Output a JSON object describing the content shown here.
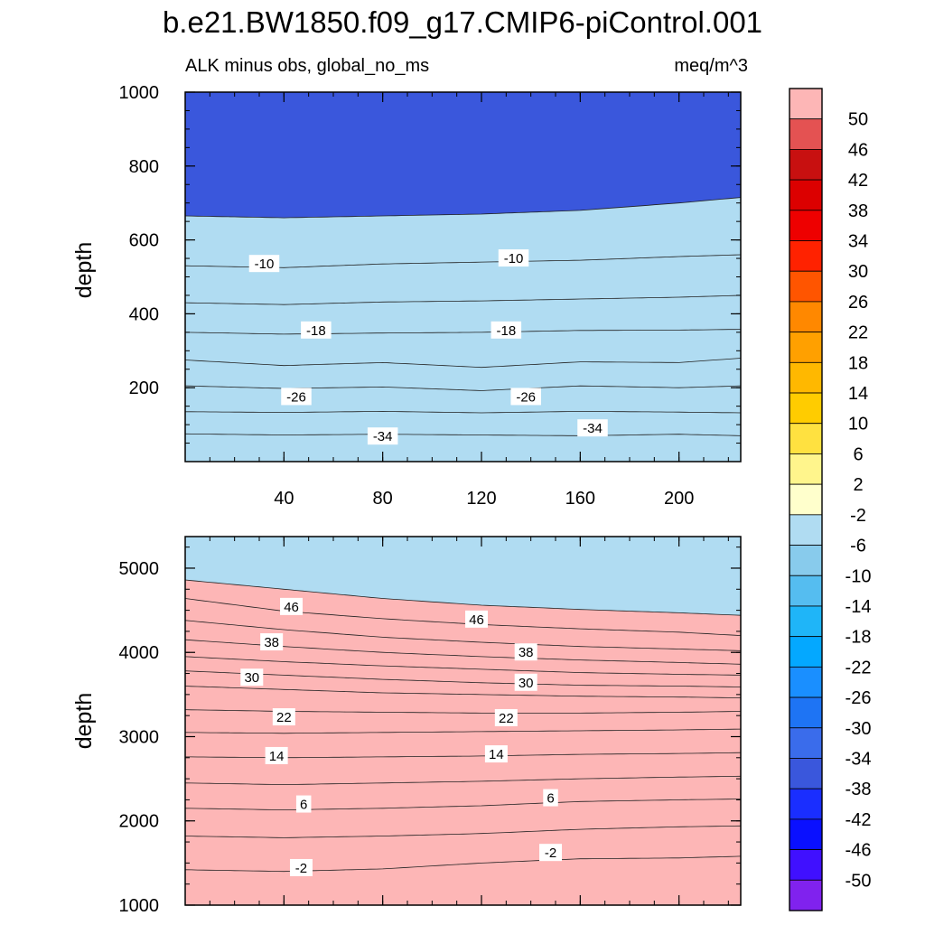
{
  "title": "b.e21.BW1850.f09_g17.CMIP6-piControl.001",
  "subtitle_left": "ALK minus obs, global_no_ms",
  "subtitle_right": "meq/m^3",
  "chart_data": [
    {
      "type": "contour",
      "panel": "upper",
      "xlabel": "",
      "ylabel": "depth",
      "xlim": [
        0,
        225
      ],
      "ylim": [
        1000,
        0
      ],
      "x_ticks": [
        40,
        80,
        120,
        160,
        200
      ],
      "y_ticks": [
        200,
        400,
        600,
        800,
        1000
      ],
      "contours": [
        {
          "level": -34,
          "points": [
            [
              0,
              75
            ],
            [
              40,
              72
            ],
            [
              80,
              74
            ],
            [
              120,
              72
            ],
            [
              160,
              70
            ],
            [
              200,
              74
            ],
            [
              225,
              70
            ]
          ]
        },
        {
          "level": -30,
          "points": [
            [
              0,
              135
            ],
            [
              40,
              133
            ],
            [
              80,
              136
            ],
            [
              120,
              132
            ],
            [
              160,
              136
            ],
            [
              200,
              134
            ],
            [
              225,
              132
            ]
          ]
        },
        {
          "level": -26,
          "points": [
            [
              0,
              205
            ],
            [
              40,
              198
            ],
            [
              80,
              202
            ],
            [
              120,
              192
            ],
            [
              160,
              205
            ],
            [
              200,
              200
            ],
            [
              225,
              205
            ]
          ]
        },
        {
          "level": -22,
          "points": [
            [
              0,
              275
            ],
            [
              40,
              260
            ],
            [
              80,
              268
            ],
            [
              120,
              255
            ],
            [
              160,
              270
            ],
            [
              200,
              268
            ],
            [
              225,
              280
            ]
          ]
        },
        {
          "level": -18,
          "points": [
            [
              0,
              350
            ],
            [
              40,
              345
            ],
            [
              80,
              348
            ],
            [
              120,
              350
            ],
            [
              160,
              355
            ],
            [
              200,
              356
            ],
            [
              225,
              358
            ]
          ]
        },
        {
          "level": -14,
          "points": [
            [
              0,
              430
            ],
            [
              40,
              425
            ],
            [
              80,
              432
            ],
            [
              120,
              435
            ],
            [
              160,
              440
            ],
            [
              200,
              445
            ],
            [
              225,
              450
            ]
          ]
        },
        {
          "level": -10,
          "points": [
            [
              0,
              530
            ],
            [
              40,
              525
            ],
            [
              80,
              535
            ],
            [
              120,
              540
            ],
            [
              160,
              545
            ],
            [
              200,
              555
            ],
            [
              225,
              560
            ]
          ]
        },
        {
          "level": -6,
          "points": [
            [
              0,
              665
            ],
            [
              40,
              660
            ],
            [
              80,
              665
            ],
            [
              120,
              670
            ],
            [
              160,
              680
            ],
            [
              200,
              700
            ],
            [
              225,
              715
            ]
          ]
        }
      ],
      "labels": [
        {
          "text": "-34",
          "x": 80,
          "y": 68
        },
        {
          "text": "-34",
          "x": 165,
          "y": 90
        },
        {
          "text": "-26",
          "x": 45,
          "y": 175
        },
        {
          "text": "-26",
          "x": 138,
          "y": 175
        },
        {
          "text": "-18",
          "x": 53,
          "y": 355
        },
        {
          "text": "-18",
          "x": 130,
          "y": 355
        },
        {
          "text": "-10",
          "x": 32,
          "y": 535
        },
        {
          "text": "-10",
          "x": 133,
          "y": 550
        }
      ]
    },
    {
      "type": "contour",
      "panel": "lower",
      "xlabel": "",
      "ylabel": "depth",
      "xlim": [
        0,
        225
      ],
      "ylim": [
        5375,
        1000
      ],
      "y_ticks": [
        1000,
        2000,
        3000,
        4000,
        5000
      ],
      "contours": [
        {
          "level": -2,
          "points": [
            [
              0,
              1420
            ],
            [
              40,
              1400
            ],
            [
              80,
              1430
            ],
            [
              120,
              1500
            ],
            [
              160,
              1550
            ],
            [
              200,
              1560
            ],
            [
              225,
              1580
            ]
          ]
        },
        {
          "level": 2,
          "points": [
            [
              0,
              1820
            ],
            [
              40,
              1800
            ],
            [
              80,
              1820
            ],
            [
              120,
              1850
            ],
            [
              160,
              1900
            ],
            [
              200,
              1930
            ],
            [
              225,
              1940
            ]
          ]
        },
        {
          "level": 6,
          "points": [
            [
              0,
              2150
            ],
            [
              40,
              2130
            ],
            [
              80,
              2150
            ],
            [
              120,
              2180
            ],
            [
              160,
              2230
            ],
            [
              200,
              2250
            ],
            [
              225,
              2260
            ]
          ]
        },
        {
          "level": 10,
          "points": [
            [
              0,
              2450
            ],
            [
              40,
              2430
            ],
            [
              80,
              2450
            ],
            [
              120,
              2470
            ],
            [
              160,
              2500
            ],
            [
              200,
              2520
            ],
            [
              225,
              2530
            ]
          ]
        },
        {
          "level": 14,
          "points": [
            [
              0,
              2760
            ],
            [
              40,
              2750
            ],
            [
              80,
              2760
            ],
            [
              120,
              2770
            ],
            [
              160,
              2790
            ],
            [
              200,
              2800
            ],
            [
              225,
              2810
            ]
          ]
        },
        {
          "level": 18,
          "points": [
            [
              0,
              3050
            ],
            [
              40,
              3040
            ],
            [
              80,
              3050
            ],
            [
              120,
              3060
            ],
            [
              160,
              3070
            ],
            [
              200,
              3080
            ],
            [
              225,
              3090
            ]
          ]
        },
        {
          "level": 22,
          "points": [
            [
              0,
              3320
            ],
            [
              40,
              3300
            ],
            [
              80,
              3290
            ],
            [
              120,
              3280
            ],
            [
              160,
              3280
            ],
            [
              200,
              3290
            ],
            [
              225,
              3300
            ]
          ]
        },
        {
          "level": 26,
          "points": [
            [
              0,
              3600
            ],
            [
              40,
              3560
            ],
            [
              80,
              3520
            ],
            [
              120,
              3500
            ],
            [
              160,
              3480
            ],
            [
              200,
              3470
            ],
            [
              225,
              3460
            ]
          ]
        },
        {
          "level": 30,
          "points": [
            [
              0,
              3780
            ],
            [
              40,
              3730
            ],
            [
              80,
              3680
            ],
            [
              120,
              3640
            ],
            [
              160,
              3610
            ],
            [
              200,
              3600
            ],
            [
              225,
              3590
            ]
          ]
        },
        {
          "level": 34,
          "points": [
            [
              0,
              3950
            ],
            [
              40,
              3890
            ],
            [
              80,
              3840
            ],
            [
              120,
              3800
            ],
            [
              160,
              3760
            ],
            [
              200,
              3740
            ],
            [
              225,
              3730
            ]
          ]
        },
        {
          "level": 38,
          "points": [
            [
              0,
              4150
            ],
            [
              40,
              4070
            ],
            [
              80,
              4000
            ],
            [
              120,
              3950
            ],
            [
              160,
              3910
            ],
            [
              200,
              3880
            ],
            [
              225,
              3860
            ]
          ]
        },
        {
          "level": 42,
          "points": [
            [
              0,
              4380
            ],
            [
              40,
              4270
            ],
            [
              80,
              4180
            ],
            [
              120,
              4120
            ],
            [
              160,
              4070
            ],
            [
              200,
              4040
            ],
            [
              225,
              4020
            ]
          ]
        },
        {
          "level": 46,
          "points": [
            [
              0,
              4640
            ],
            [
              40,
              4490
            ],
            [
              80,
              4400
            ],
            [
              120,
              4330
            ],
            [
              160,
              4280
            ],
            [
              200,
              4240
            ],
            [
              225,
              4200
            ]
          ]
        },
        {
          "level": 50,
          "points": [
            [
              0,
              4860
            ],
            [
              40,
              4750
            ],
            [
              80,
              4640
            ],
            [
              120,
              4560
            ],
            [
              160,
              4510
            ],
            [
              200,
              4470
            ],
            [
              225,
              4440
            ]
          ]
        }
      ],
      "labels": [
        {
          "text": "-2",
          "x": 47,
          "y": 1440
        },
        {
          "text": "-2",
          "x": 148,
          "y": 1620
        },
        {
          "text": "6",
          "x": 48,
          "y": 2195
        },
        {
          "text": "6",
          "x": 148,
          "y": 2270
        },
        {
          "text": "14",
          "x": 37,
          "y": 2770
        },
        {
          "text": "14",
          "x": 126,
          "y": 2790
        },
        {
          "text": "22",
          "x": 40,
          "y": 3230
        },
        {
          "text": "22",
          "x": 130,
          "y": 3220
        },
        {
          "text": "30",
          "x": 27,
          "y": 3700
        },
        {
          "text": "30",
          "x": 138,
          "y": 3640
        },
        {
          "text": "38",
          "x": 35,
          "y": 4120
        },
        {
          "text": "38",
          "x": 138,
          "y": 4000
        },
        {
          "text": "46",
          "x": 43,
          "y": 4540
        },
        {
          "text": "46",
          "x": 118,
          "y": 4390
        }
      ]
    }
  ],
  "colorbar": {
    "labels": [
      "50",
      "46",
      "42",
      "38",
      "34",
      "30",
      "26",
      "22",
      "18",
      "14",
      "10",
      "6",
      "2",
      "-2",
      "-6",
      "-10",
      "-14",
      "-18",
      "-22",
      "-26",
      "-30",
      "-34",
      "-38",
      "-42",
      "-46",
      "-50"
    ],
    "colors": [
      "#fdb6b6",
      "#e45252",
      "#c81010",
      "#dc0000",
      "#ee0000",
      "#ff2200",
      "#ff5500",
      "#ff8800",
      "#ffa000",
      "#ffb800",
      "#ffcc00",
      "#ffe140",
      "#fff58c",
      "#ffffcc",
      "#b0dcf2",
      "#88cbec",
      "#55bdf0",
      "#1fb5f8",
      "#04a8ff",
      "#1a8fff",
      "#1e74f4",
      "#3a6ceb",
      "#3a57dc",
      "#1a2eff",
      "#0a10ff",
      "#4010ff",
      "#8022ee"
    ]
  }
}
